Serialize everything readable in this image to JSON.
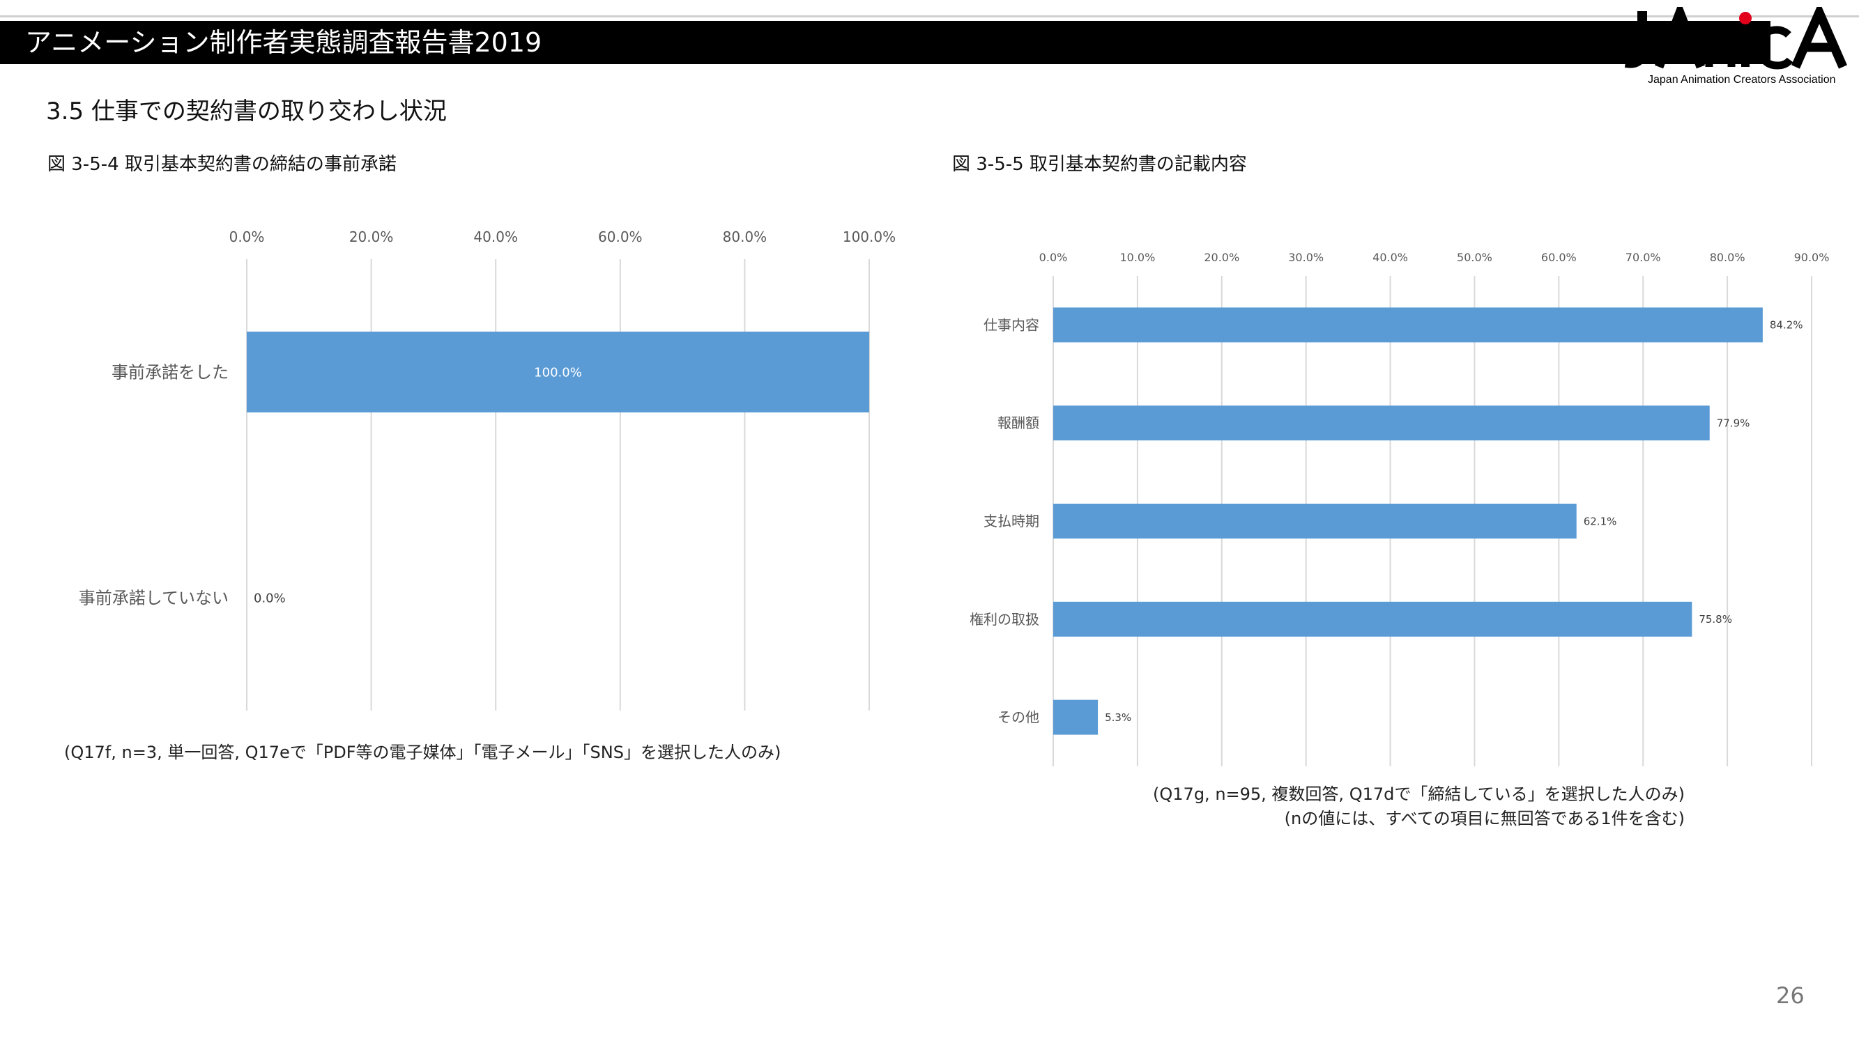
{
  "header": {
    "title": "アニメーション制作者実態調査報告書2019",
    "logo_mark": "JAnicA",
    "logo_sub": "Japan Animation Creators Association"
  },
  "section_title": "3.5 仕事での契約書の取り交わし状況",
  "page_number": "26",
  "figures": [
    {
      "title": "図 3-5-4 取引基本契約書の締結の事前承諾",
      "note": "(Q17f, n=3, 単一回答, Q17eで「PDF等の電子媒体」「電子メール」「SNS」を選択した人のみ)"
    },
    {
      "title": "図 3-5-5 取引基本契約書の記載内容",
      "note": "(Q17g, n=95, 複数回答, Q17dで「締結している」を選択した人のみ)",
      "note2": "(nの値には、すべての項目に無回答である1件を含む)"
    }
  ],
  "colors": {
    "bar": "#5b9bd5",
    "grid": "#d9d9d9",
    "axis_text": "#595959",
    "header_bg": "#000000",
    "logo_accent": "#e2001a"
  },
  "chart_data": [
    {
      "type": "bar",
      "orientation": "horizontal",
      "categories": [
        "事前承諾をした",
        "事前承諾していない"
      ],
      "values": [
        100.0,
        0.0
      ],
      "value_labels": [
        "100.0%",
        "0.0%"
      ],
      "xlim": [
        0,
        100
      ],
      "ticks": [
        "0.0%",
        "20.0%",
        "40.0%",
        "60.0%",
        "80.0%",
        "100.0%"
      ],
      "tick_values": [
        0,
        20,
        40,
        60,
        80,
        100
      ],
      "grid": true,
      "label_inside": true
    },
    {
      "type": "bar",
      "orientation": "horizontal",
      "categories": [
        "仕事内容",
        "報酬額",
        "支払時期",
        "権利の取扱",
        "その他"
      ],
      "values": [
        84.2,
        77.9,
        62.1,
        75.8,
        5.3
      ],
      "value_labels": [
        "84.2%",
        "77.9%",
        "62.1%",
        "75.8%",
        "5.3%"
      ],
      "xlim": [
        0,
        90
      ],
      "ticks": [
        "0.0%",
        "10.0%",
        "20.0%",
        "30.0%",
        "40.0%",
        "50.0%",
        "60.0%",
        "70.0%",
        "80.0%",
        "90.0%"
      ],
      "tick_values": [
        0,
        10,
        20,
        30,
        40,
        50,
        60,
        70,
        80,
        90
      ],
      "grid": true,
      "label_inside": false
    }
  ]
}
